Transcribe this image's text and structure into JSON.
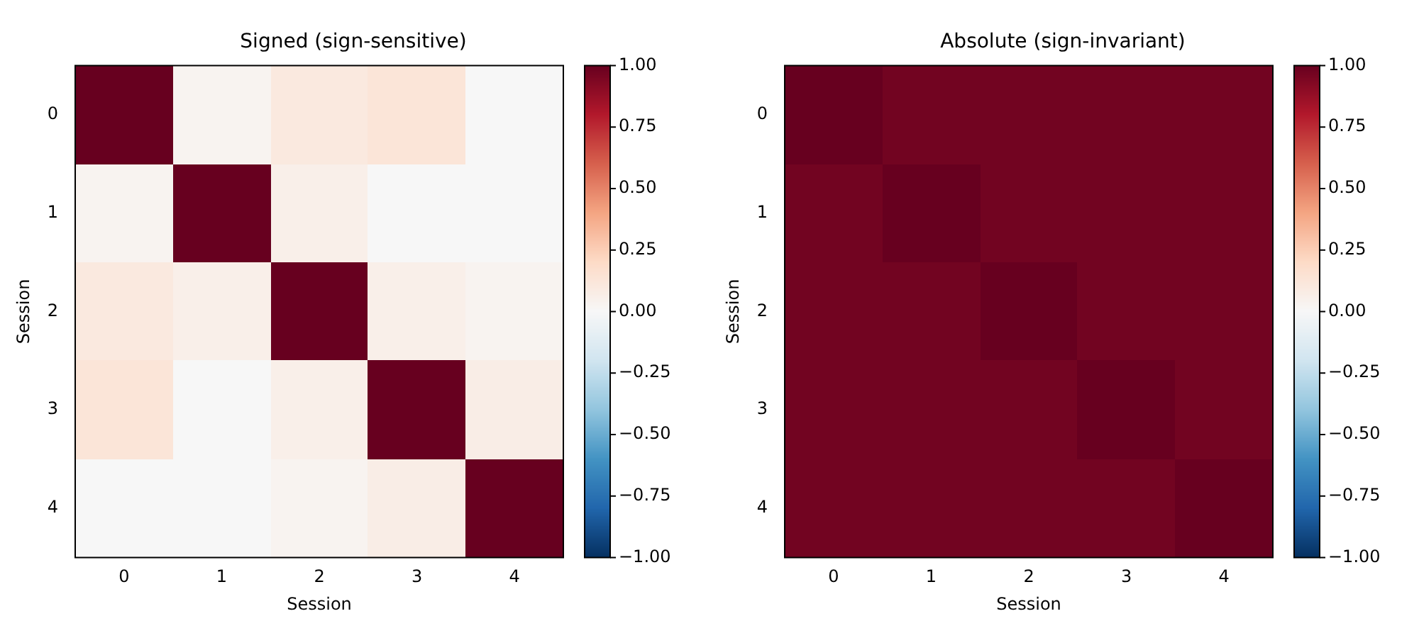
{
  "chart_data": [
    {
      "type": "heatmap",
      "title": "Signed (sign-sensitive)",
      "xlabel": "Session",
      "ylabel": "Session",
      "categories": [
        "0",
        "1",
        "2",
        "3",
        "4"
      ],
      "y_categories": [
        "0",
        "1",
        "2",
        "3",
        "4"
      ],
      "cells": [
        [
          1,
          0.03,
          0.1,
          0.13,
          0
        ],
        [
          0.03,
          1,
          0.06,
          0,
          0
        ],
        [
          0.1,
          0.06,
          1,
          0.06,
          0.03
        ],
        [
          0.13,
          0,
          0.06,
          1,
          0.07
        ],
        [
          0,
          0,
          0.03,
          0.07,
          1
        ]
      ],
      "clim": [
        -1,
        1
      ],
      "cticks": [
        {
          "value": -1,
          "label": "−1.00"
        },
        {
          "value": -0.75,
          "label": "−0.75"
        },
        {
          "value": -0.5,
          "label": "−0.50"
        },
        {
          "value": -0.25,
          "label": "−0.25"
        },
        {
          "value": 0,
          "label": "0.00"
        },
        {
          "value": 0.25,
          "label": "0.25"
        },
        {
          "value": 0.5,
          "label": "0.50"
        },
        {
          "value": 0.75,
          "label": "0.75"
        },
        {
          "value": 1,
          "label": "1.00"
        }
      ]
    },
    {
      "type": "heatmap",
      "title": "Absolute (sign-invariant)",
      "xlabel": "Session",
      "ylabel": "Session",
      "categories": [
        "0",
        "1",
        "2",
        "3",
        "4"
      ],
      "y_categories": [
        "0",
        "1",
        "2",
        "3",
        "4"
      ],
      "cells": [
        [
          1,
          0.97,
          0.97,
          0.97,
          0.97
        ],
        [
          0.97,
          1,
          0.97,
          0.97,
          0.97
        ],
        [
          0.97,
          0.97,
          1,
          0.97,
          0.97
        ],
        [
          0.97,
          0.97,
          0.97,
          1,
          0.97
        ],
        [
          0.97,
          0.97,
          0.97,
          0.97,
          1
        ]
      ],
      "clim": [
        -1,
        1
      ],
      "cticks": [
        {
          "value": -1,
          "label": "−1.00"
        },
        {
          "value": -0.75,
          "label": "−0.75"
        },
        {
          "value": -0.5,
          "label": "−0.50"
        },
        {
          "value": -0.25,
          "label": "−0.25"
        },
        {
          "value": 0,
          "label": "0.00"
        },
        {
          "value": 0.25,
          "label": "0.25"
        },
        {
          "value": 0.5,
          "label": "0.50"
        },
        {
          "value": 0.75,
          "label": "0.75"
        },
        {
          "value": 1,
          "label": "1.00"
        }
      ]
    }
  ]
}
